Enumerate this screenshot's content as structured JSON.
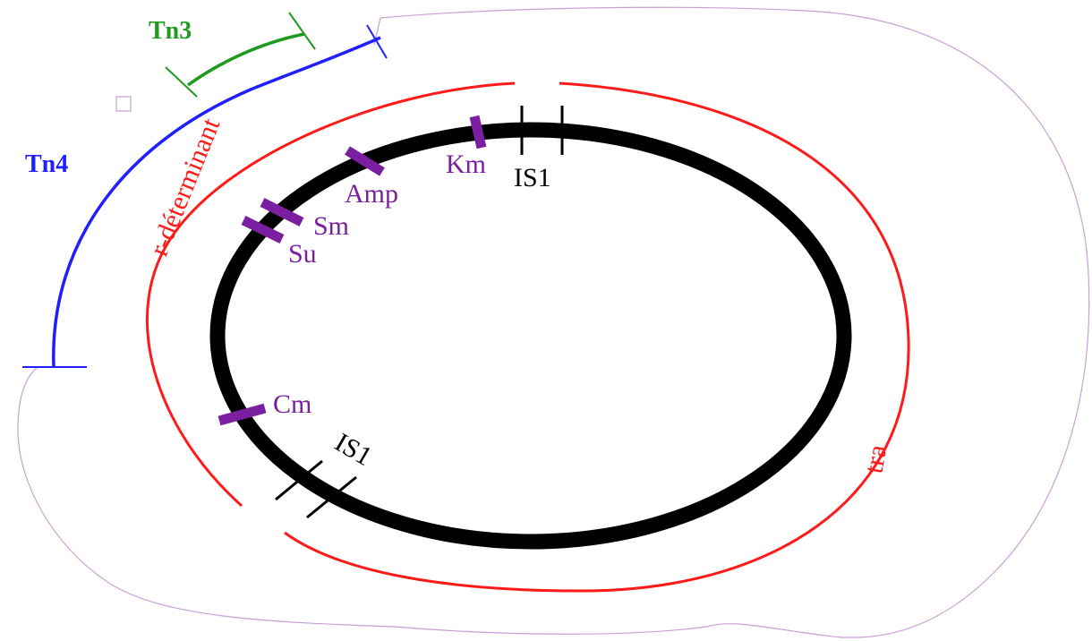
{
  "colors": {
    "plasmid": "#000000",
    "region": "#ff1a1a",
    "gene": "#7a1fa0",
    "tn4": "#1f1fff",
    "tn3": "#1f9a1f",
    "outline": "#c9a0d6"
  },
  "labels": {
    "tn3": "Tn3",
    "tn4": "Tn4",
    "r_determinant": "r-déterminant",
    "tra": "tra",
    "is1_top": "IS1",
    "is1_bottom": "IS1"
  },
  "genes": {
    "km": "Km",
    "amp": "Amp",
    "sm": "Sm",
    "su": "Su",
    "cm": "Cm"
  }
}
